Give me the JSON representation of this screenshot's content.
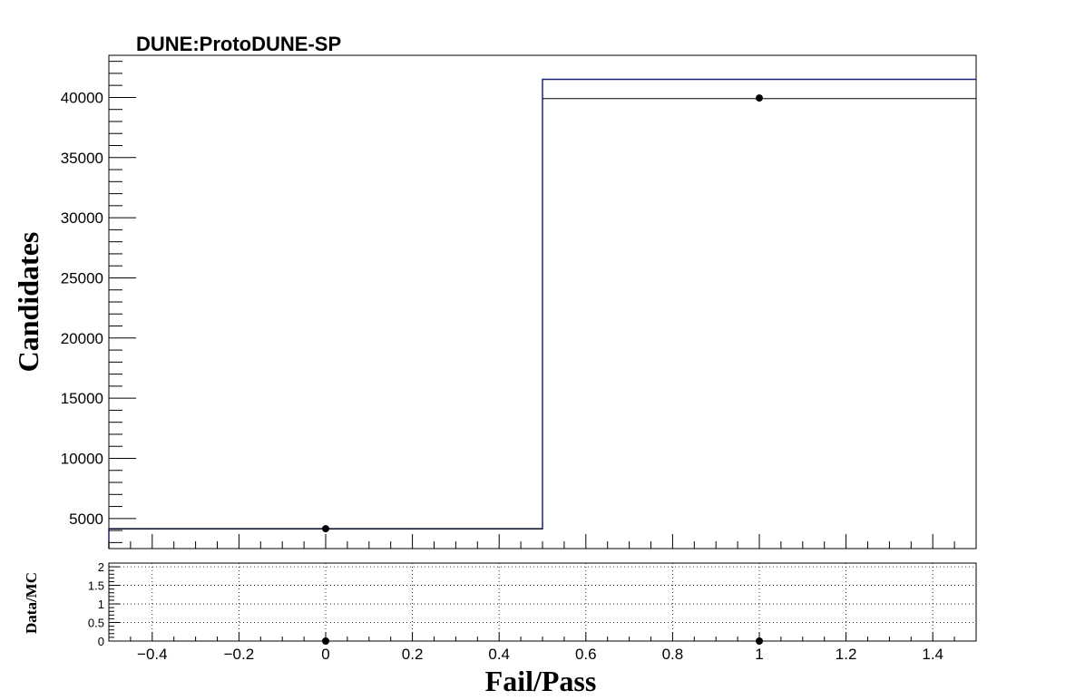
{
  "chart_data": [
    {
      "panel": "main",
      "type": "histogram",
      "title": "DUNE:ProtoDUNE-SP",
      "ylabel": "Candidates",
      "xlim": [
        -0.5,
        1.5
      ],
      "ylim": [
        2500,
        43500
      ],
      "yticks": [
        5000,
        10000,
        15000,
        20000,
        25000,
        30000,
        35000,
        40000
      ],
      "ytick_labels": [
        "5000",
        "10000",
        "15000",
        "20000",
        "25000",
        "30000",
        "35000",
        "40000"
      ],
      "xticks": [
        -0.4,
        -0.2,
        0,
        0.2,
        0.4,
        0.6,
        0.8,
        1,
        1.2,
        1.4
      ],
      "xtick_labels": [
        "−0.4",
        "−0.2",
        "0",
        "0.2",
        "0.4",
        "0.6",
        "0.8",
        "1",
        "1.2",
        "1.4"
      ],
      "bin_edges": [
        -0.5,
        0.5,
        1.5
      ],
      "mc_stack": [
        4150,
        41500
      ],
      "mc_outline": [
        4150,
        39900
      ],
      "data_points": {
        "x": [
          0,
          1
        ],
        "y": [
          4150,
          39950
        ]
      },
      "colors": {
        "mc_stack": "#1a237e",
        "mc_outline": "#000000",
        "data": "#000000"
      }
    },
    {
      "panel": "ratio",
      "type": "scatter",
      "ylabel": "Data/MC",
      "xlabel": "Fail/Pass",
      "xlim": [
        -0.5,
        1.5
      ],
      "ylim": [
        0,
        2.1
      ],
      "yticks": [
        0,
        0.5,
        1,
        1.5,
        2
      ],
      "ytick_labels": [
        "0",
        "0.5",
        "1",
        "1.5",
        "2"
      ],
      "xticks": [
        -0.4,
        -0.2,
        0,
        0.2,
        0.4,
        0.6,
        0.8,
        1,
        1.2,
        1.4
      ],
      "xtick_labels": [
        "−0.4",
        "−0.2",
        "0",
        "0.2",
        "0.4",
        "0.6",
        "0.8",
        "1",
        "1.2",
        "1.4"
      ],
      "grid": true,
      "points": {
        "x": [
          0,
          1
        ],
        "y": [
          0,
          0
        ]
      }
    }
  ]
}
